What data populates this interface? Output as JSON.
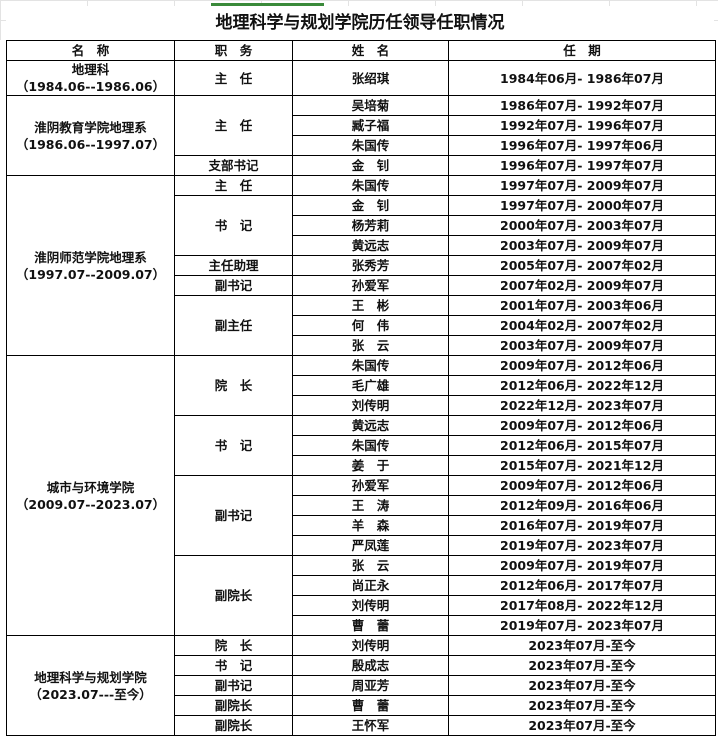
{
  "title": "地理科学与规划学院历任领导任职情况",
  "headers": [
    "名　称",
    "职　务",
    "姓　名",
    "任　期"
  ],
  "groups": [
    {
      "name": "地理科",
      "period": "（1984.06--1986.06）",
      "roles": [
        {
          "title": "主　任",
          "members": [
            {
              "name": "张绍琪",
              "term": "1984年06月- 1986年07月"
            }
          ]
        }
      ]
    },
    {
      "name": "淮阴教育学院地理系",
      "period": "（1986.06--1997.07）",
      "roles": [
        {
          "title": "主　任",
          "members": [
            {
              "name": "吴培菊",
              "term": "1986年07月- 1992年07月"
            },
            {
              "name": "臧子福",
              "term": "1992年07月- 1996年07月"
            },
            {
              "name": "朱国传",
              "term": "1996年07月- 1997年06月"
            }
          ]
        },
        {
          "title": "支部书记",
          "members": [
            {
              "name": "金　钊",
              "term": "1996年07月- 1997年07月"
            }
          ]
        }
      ]
    },
    {
      "name": "淮阴师范学院地理系",
      "period": "（1997.07--2009.07）",
      "roles": [
        {
          "title": "主　任",
          "members": [
            {
              "name": "朱国传",
              "term": "1997年07月- 2009年07月"
            }
          ]
        },
        {
          "title": "书　记",
          "members": [
            {
              "name": "金　钊",
              "term": "1997年07月- 2000年07月"
            },
            {
              "name": "杨芳莉",
              "term": "2000年07月- 2003年07月"
            },
            {
              "name": "黄远志",
              "term": "2003年07月- 2009年07月"
            }
          ]
        },
        {
          "title": "主任助理",
          "members": [
            {
              "name": "张秀芳",
              "term": "2005年07月- 2007年02月"
            }
          ]
        },
        {
          "title": "副书记",
          "members": [
            {
              "name": "孙爱军",
              "term": "2007年02月- 2009年07月"
            }
          ]
        },
        {
          "title": "副主任",
          "members": [
            {
              "name": "王　彬",
              "term": "2001年07月- 2003年06月"
            },
            {
              "name": "何　伟",
              "term": "2004年02月- 2007年02月"
            },
            {
              "name": "张　云",
              "term": "2003年07月- 2009年07月"
            }
          ]
        }
      ]
    },
    {
      "name": "城市与环境学院",
      "period": "（2009.07--2023.07）",
      "roles": [
        {
          "title": "院　长",
          "members": [
            {
              "name": "朱国传",
              "term": "2009年07月- 2012年06月"
            },
            {
              "name": "毛广雄",
              "term": "2012年06月- 2022年12月"
            },
            {
              "name": "刘传明",
              "term": "2022年12月- 2023年07月"
            }
          ]
        },
        {
          "title": "书　记",
          "members": [
            {
              "name": "黄远志",
              "term": "2009年07月- 2012年06月"
            },
            {
              "name": "朱国传",
              "term": "2012年06月- 2015年07月"
            },
            {
              "name": "姜　于",
              "term": "2015年07月- 2021年12月"
            }
          ]
        },
        {
          "title": "副书记",
          "members": [
            {
              "name": "孙爱军",
              "term": "2009年07月- 2012年06月"
            },
            {
              "name": "王　涛",
              "term": "2012年09月- 2016年06月"
            },
            {
              "name": "羊　森",
              "term": "2016年07月- 2019年07月"
            },
            {
              "name": "严凤莲",
              "term": "2019年07月- 2023年07月"
            }
          ]
        },
        {
          "title": "副院长",
          "members": [
            {
              "name": "张　云",
              "term": "2009年07月- 2019年07月"
            },
            {
              "name": "尚正永",
              "term": "2012年06月- 2017年07月"
            },
            {
              "name": "刘传明",
              "term": "2017年08月- 2022年12月"
            },
            {
              "name": "曹　蕾",
              "term": "2019年07月- 2023年07月"
            }
          ]
        }
      ]
    },
    {
      "name": "地理科学与规划学院",
      "period": "（2023.07---至今）",
      "roles": [
        {
          "title": "院　长",
          "members": [
            {
              "name": "刘传明",
              "term": "2023年07月-至今"
            }
          ]
        },
        {
          "title": "书　记",
          "members": [
            {
              "name": "殷成志",
              "term": "2023年07月-至今"
            }
          ]
        },
        {
          "title": "副书记",
          "members": [
            {
              "name": "周亚芳",
              "term": "2023年07月-至今"
            }
          ]
        },
        {
          "title": "副院长",
          "members": [
            {
              "name": "曹　蕾",
              "term": "2023年07月-至今"
            }
          ]
        },
        {
          "title": "副院长",
          "members": [
            {
              "name": "王怀军",
              "term": "2023年07月-至今"
            }
          ]
        }
      ]
    }
  ]
}
